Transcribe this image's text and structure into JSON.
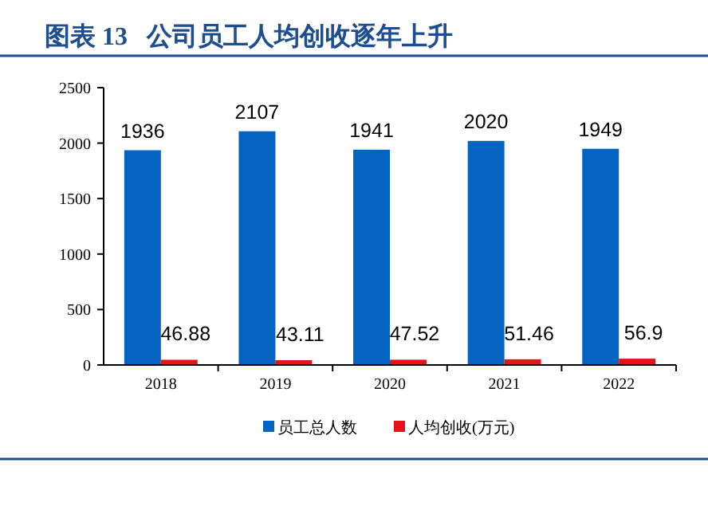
{
  "chart_data": {
    "type": "bar",
    "title": "图表 13   公司员工人均创收逐年上升",
    "categories": [
      "2018",
      "2019",
      "2020",
      "2021",
      "2022"
    ],
    "series": [
      {
        "name": "员工总人数",
        "color": "#0563c1",
        "values": [
          1936,
          2107,
          1941,
          2020,
          1949
        ]
      },
      {
        "name": "人均创收(万元)",
        "color": "#e3131b",
        "values": [
          46.88,
          43.11,
          47.52,
          51.46,
          56.9
        ]
      }
    ],
    "ylim": [
      0,
      2500
    ],
    "yticks": [
      0,
      500,
      1000,
      1500,
      2000,
      2500
    ],
    "data_labels": true,
    "legend": "bottom",
    "grid": false
  }
}
